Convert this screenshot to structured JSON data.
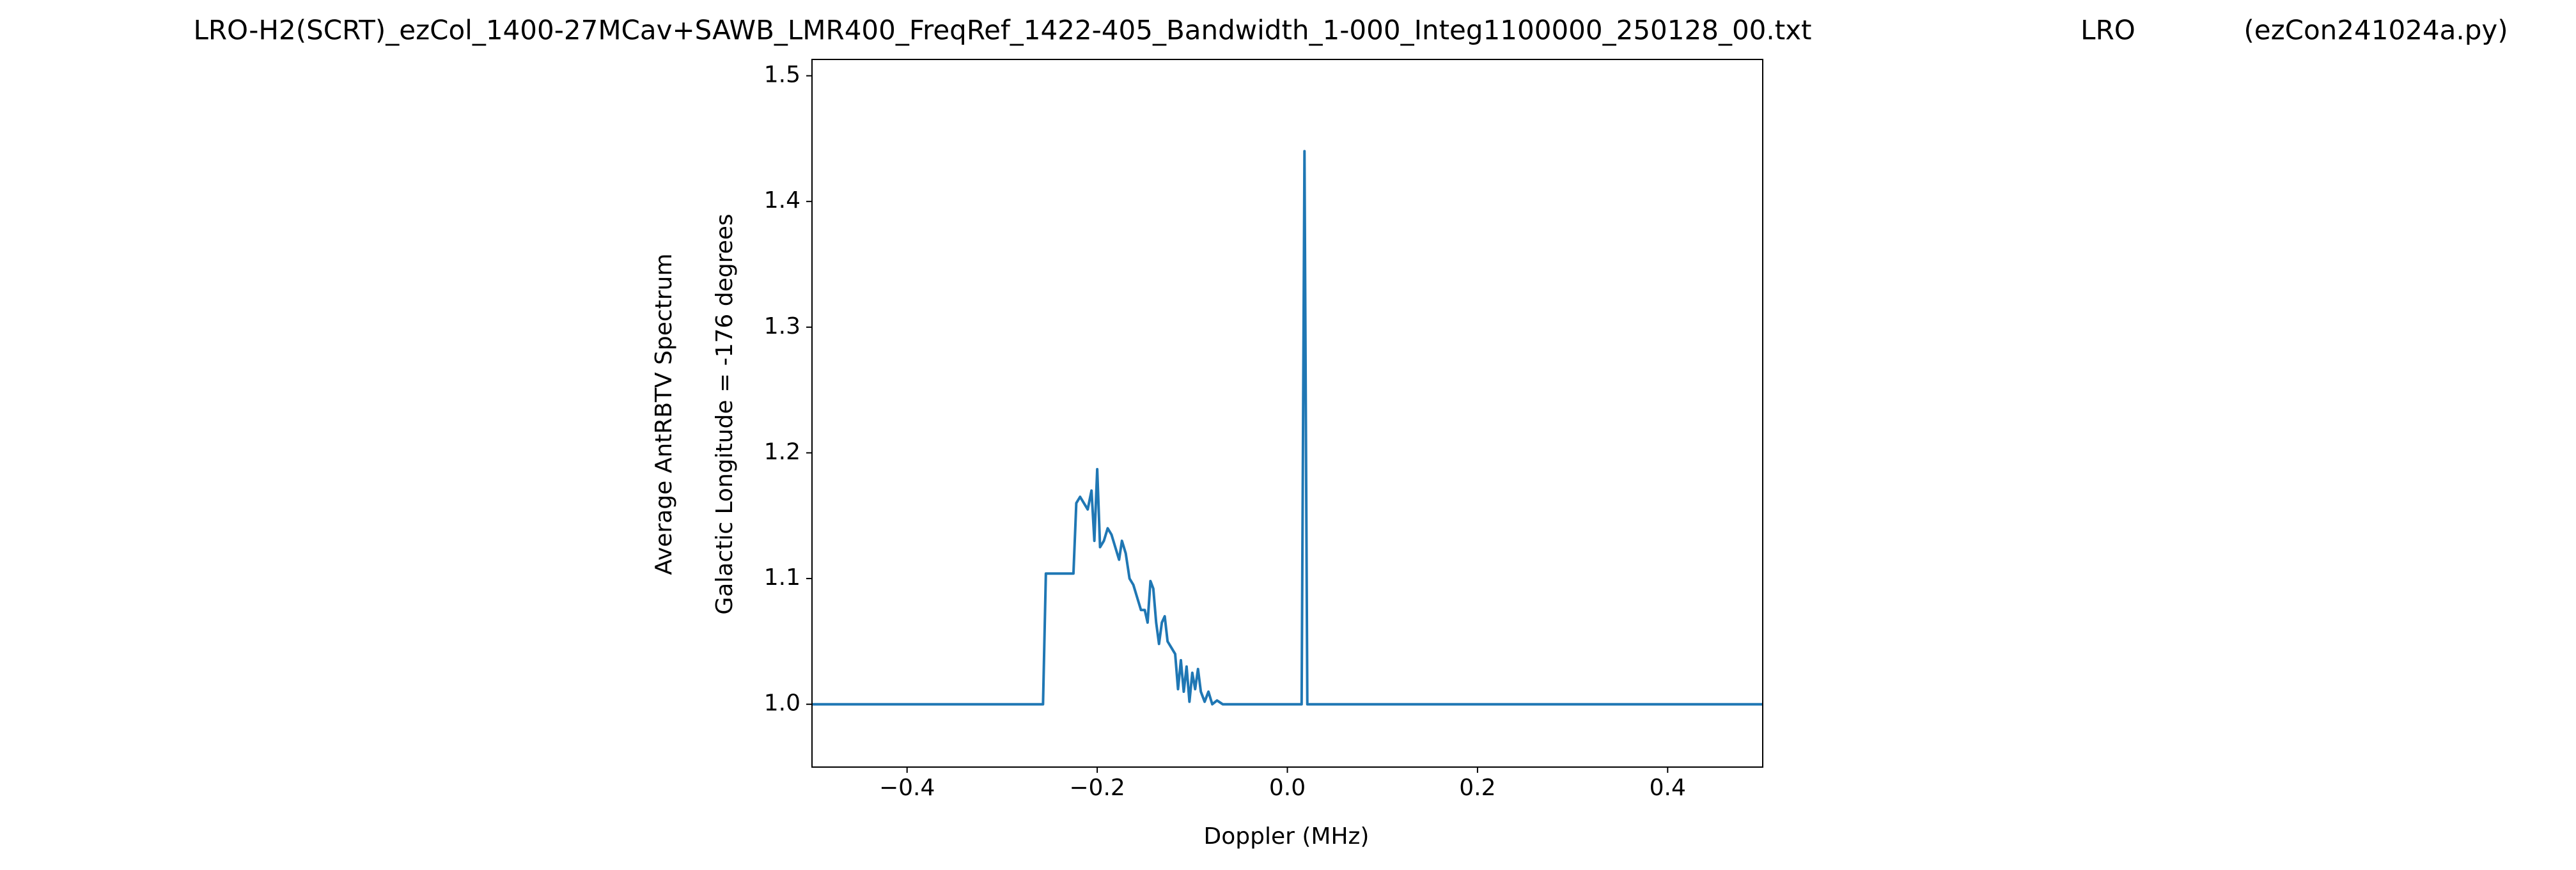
{
  "chart_data": {
    "type": "line",
    "title": [
      "LRO-H2(SCRT)_ezCol_1400-27MCav+SAWB_LMR400_FreqRef_1422-405_Bandwidth_1-000_Integ1100000_250128_00.txt",
      "LRO",
      "(ezCon241024a.py)"
    ],
    "xlabel": "Doppler (MHz)",
    "ylabel": [
      "Average AntRBTV Spectrum",
      "Galactic Longitude = -176 degrees"
    ],
    "color": "#1f77b4",
    "x": [
      -0.5,
      -0.257,
      -0.254,
      -0.225,
      -0.222,
      -0.218,
      -0.214,
      -0.21,
      -0.206,
      -0.203,
      -0.2,
      -0.197,
      -0.193,
      -0.189,
      -0.185,
      -0.181,
      -0.177,
      -0.174,
      -0.17,
      -0.166,
      -0.162,
      -0.158,
      -0.154,
      -0.15,
      -0.147,
      -0.144,
      -0.141,
      -0.138,
      -0.135,
      -0.132,
      -0.129,
      -0.126,
      -0.122,
      -0.118,
      -0.115,
      -0.112,
      -0.109,
      -0.106,
      -0.103,
      -0.1,
      -0.097,
      -0.094,
      -0.091,
      -0.087,
      -0.083,
      -0.079,
      -0.074,
      -0.068,
      0.015,
      0.018,
      0.021,
      0.5
    ],
    "values": [
      1.0,
      1.0,
      1.104,
      1.104,
      1.16,
      1.165,
      1.16,
      1.155,
      1.17,
      1.13,
      1.187,
      1.125,
      1.13,
      1.14,
      1.135,
      1.125,
      1.115,
      1.13,
      1.12,
      1.1,
      1.095,
      1.085,
      1.075,
      1.075,
      1.065,
      1.098,
      1.092,
      1.065,
      1.048,
      1.065,
      1.07,
      1.05,
      1.045,
      1.04,
      1.012,
      1.035,
      1.01,
      1.03,
      1.002,
      1.025,
      1.012,
      1.028,
      1.01,
      1.002,
      1.01,
      1.0,
      1.003,
      1.0,
      1.0,
      1.44,
      1.0,
      1.0
    ],
    "xlim": [
      -0.5,
      0.5
    ],
    "ylim": [
      0.95,
      1.513
    ],
    "xticks": [
      {
        "value": -0.4,
        "label": "−0.4"
      },
      {
        "value": -0.2,
        "label": "−0.2"
      },
      {
        "value": 0,
        "label": "0.0"
      },
      0.2,
      0.4
    ],
    "yticks": [
      {
        "value": 1,
        "label": "1.0"
      },
      1.1,
      1.2,
      1.3,
      1.4,
      1.5
    ]
  }
}
